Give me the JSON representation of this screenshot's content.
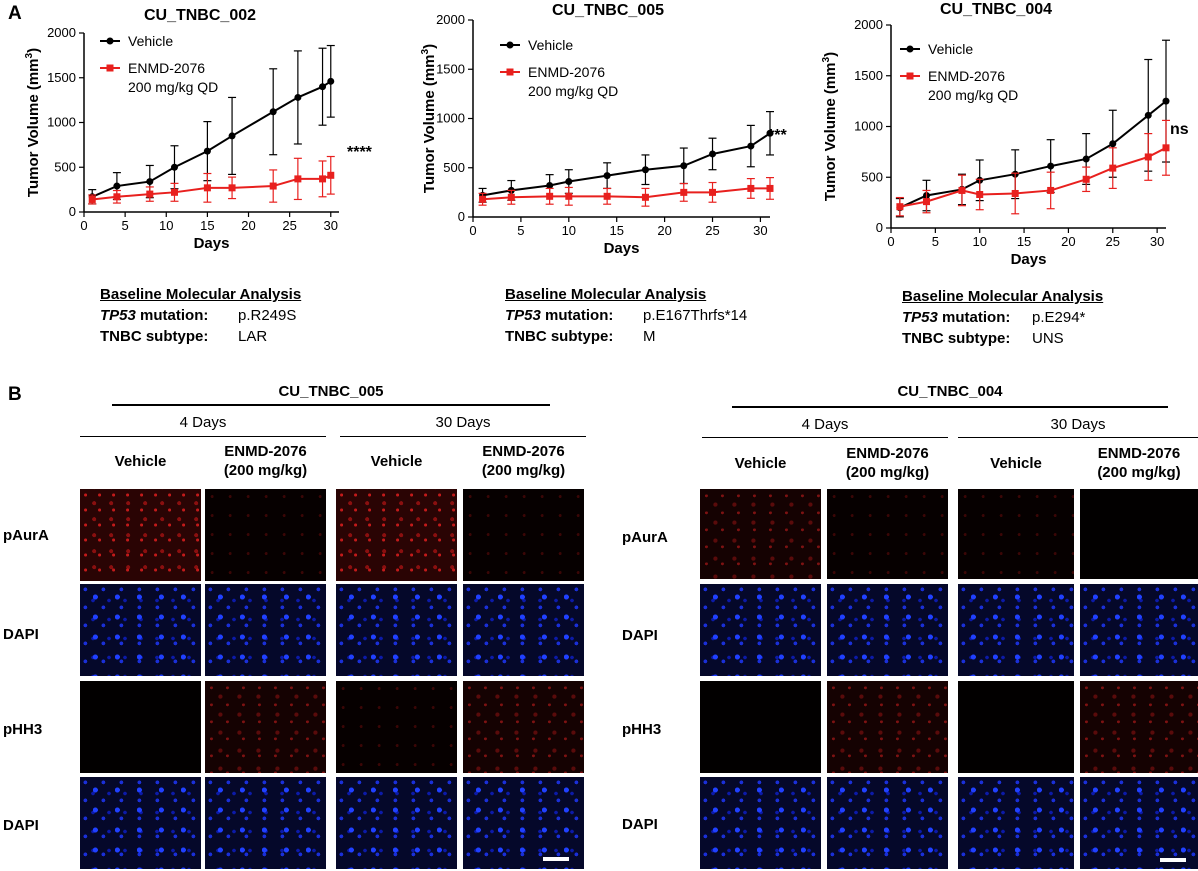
{
  "panel_a_label": "A",
  "panel_b_label": "B",
  "colors": {
    "vehicle": "#000000",
    "enmd": "#e8201e"
  },
  "legend": {
    "vehicle": "Vehicle",
    "enmd_line1": "ENMD-2076",
    "enmd_line2": "200 mg/kg QD"
  },
  "chart_data": [
    {
      "type": "line",
      "title": "CU_TNBC_002",
      "xlabel": "Days",
      "ylabel_main": "Tumor Volume (mm",
      "ylabel_sup": "3",
      "ylabel_end": ")",
      "xlim": [
        0,
        31
      ],
      "ylim": [
        0,
        2000
      ],
      "xticks": [
        0,
        5,
        10,
        15,
        20,
        25,
        30
      ],
      "yticks": [
        0,
        500,
        1000,
        1500,
        2000
      ],
      "significance": "****",
      "series": [
        {
          "name": "Vehicle",
          "x": [
            1,
            4,
            8,
            11,
            15,
            18,
            23,
            26,
            29,
            30
          ],
          "y": [
            170,
            290,
            340,
            500,
            680,
            850,
            1120,
            1280,
            1400,
            1460
          ],
          "err": [
            80,
            150,
            180,
            240,
            330,
            430,
            480,
            520,
            430,
            400
          ]
        },
        {
          "name": "ENMD-2076 200 mg/kg QD",
          "x": [
            1,
            4,
            8,
            11,
            15,
            18,
            23,
            26,
            29,
            30
          ],
          "y": [
            140,
            170,
            200,
            220,
            270,
            270,
            290,
            370,
            370,
            410
          ],
          "err": [
            50,
            70,
            80,
            100,
            160,
            120,
            180,
            230,
            200,
            210
          ]
        }
      ]
    },
    {
      "type": "line",
      "title": "CU_TNBC_005",
      "xlabel": "Days",
      "ylabel_main": "Tumor Volume (mm",
      "ylabel_sup": "3",
      "ylabel_end": ")",
      "xlim": [
        0,
        31
      ],
      "ylim": [
        0,
        2000
      ],
      "xticks": [
        0,
        5,
        10,
        15,
        20,
        25,
        30
      ],
      "yticks": [
        0,
        500,
        1000,
        1500,
        2000
      ],
      "significance": "***",
      "series": [
        {
          "name": "Vehicle",
          "x": [
            1,
            4,
            8,
            10,
            14,
            18,
            22,
            25,
            29,
            31
          ],
          "y": [
            220,
            270,
            320,
            360,
            420,
            480,
            520,
            640,
            720,
            850
          ],
          "err": [
            70,
            100,
            110,
            120,
            130,
            150,
            180,
            160,
            210,
            220
          ]
        },
        {
          "name": "ENMD-2076 200 mg/kg QD",
          "x": [
            1,
            4,
            8,
            10,
            14,
            18,
            22,
            25,
            29,
            31
          ],
          "y": [
            180,
            200,
            210,
            210,
            210,
            200,
            250,
            250,
            290,
            290
          ],
          "err": [
            60,
            70,
            80,
            90,
            80,
            90,
            90,
            100,
            100,
            110
          ]
        }
      ]
    },
    {
      "type": "line",
      "title": "CU_TNBC_004",
      "xlabel": "Days",
      "ylabel_main": "Tumor Volume (mm",
      "ylabel_sup": "3",
      "ylabel_end": ")",
      "xlim": [
        0,
        31
      ],
      "ylim": [
        0,
        2000
      ],
      "xticks": [
        0,
        5,
        10,
        15,
        20,
        25,
        30
      ],
      "yticks": [
        0,
        500,
        1000,
        1500,
        2000
      ],
      "significance": "ns",
      "series": [
        {
          "name": "Vehicle",
          "x": [
            1,
            4,
            8,
            10,
            14,
            18,
            22,
            25,
            29,
            31
          ],
          "y": [
            200,
            320,
            380,
            470,
            530,
            610,
            680,
            830,
            1110,
            1250
          ],
          "err": [
            90,
            150,
            150,
            200,
            240,
            260,
            250,
            330,
            550,
            600
          ]
        },
        {
          "name": "ENMD-2076 200 mg/kg QD",
          "x": [
            1,
            4,
            8,
            10,
            14,
            18,
            22,
            25,
            29,
            31
          ],
          "y": [
            210,
            260,
            370,
            330,
            340,
            370,
            480,
            590,
            700,
            790
          ],
          "err": [
            90,
            110,
            150,
            150,
            200,
            180,
            120,
            200,
            230,
            270
          ]
        }
      ]
    }
  ],
  "baselines": [
    {
      "heading": "Baseline Molecular Analysis",
      "tp53_gene": "TP53",
      "tp53_suffix": " mutation:",
      "tp53_value": "p.R249S",
      "subtype_label": "TNBC subtype:",
      "subtype_value": "LAR"
    },
    {
      "heading": "Baseline Molecular Analysis",
      "tp53_gene": "TP53",
      "tp53_suffix": " mutation:",
      "tp53_value": "p.E167Thrfs*14",
      "subtype_label": "TNBC subtype:",
      "subtype_value": "M"
    },
    {
      "heading": "Baseline Molecular Analysis",
      "tp53_gene": "TP53",
      "tp53_suffix": " mutation:",
      "tp53_value": "p.E294*",
      "subtype_label": "TNBC subtype:",
      "subtype_value": "UNS"
    }
  ],
  "panel_b": [
    {
      "title": "CU_TNBC_005",
      "timepoints": [
        "4 Days",
        "30 Days"
      ],
      "columns": [
        {
          "line1": "Vehicle",
          "line2": ""
        },
        {
          "line1": "ENMD-2076",
          "line2": "(200 mg/kg)"
        },
        {
          "line1": "Vehicle",
          "line2": ""
        },
        {
          "line1": "ENMD-2076",
          "line2": "(200 mg/kg)"
        }
      ],
      "rows": [
        "pAurA",
        "DAPI",
        "pHH3",
        "DAPI"
      ]
    },
    {
      "title": "CU_TNBC_004",
      "timepoints": [
        "4 Days",
        "30 Days"
      ],
      "columns": [
        {
          "line1": "Vehicle",
          "line2": ""
        },
        {
          "line1": "ENMD-2076",
          "line2": "(200 mg/kg)"
        },
        {
          "line1": "Vehicle",
          "line2": ""
        },
        {
          "line1": "ENMD-2076",
          "line2": "(200 mg/kg)"
        }
      ],
      "rows": [
        "pAurA",
        "DAPI",
        "pHH3",
        "DAPI"
      ]
    }
  ]
}
